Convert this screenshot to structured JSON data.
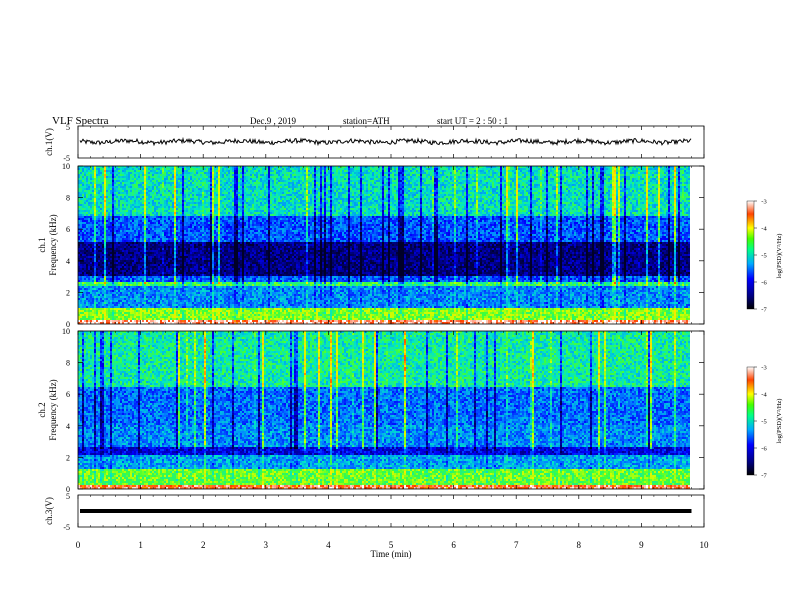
{
  "header": {
    "title": "VLF  Spectra",
    "date": "Dec.9  , 2019",
    "station": "station=ATH",
    "start_ut": "start  UT  =    2  : 50 : 1"
  },
  "chart_data": [
    {
      "type": "line",
      "ylabel": "ch.1(V)",
      "ylim": [
        -5,
        5
      ],
      "yticks": [
        "5",
        "-5"
      ],
      "description_level": 0.1
    },
    {
      "type": "heatmap",
      "ylabel_top": "ch.1",
      "ylabel": "Frequency  (kHz)",
      "ylim": [
        0,
        10
      ],
      "yticks": [
        "0",
        "2",
        "4",
        "6",
        "8",
        "10"
      ],
      "colorbar": {
        "label": "log(PSD)(V²/Hz)",
        "range": [
          -7,
          -3
        ],
        "ticks": [
          "-3",
          "-4",
          "-5",
          "-6",
          "-7"
        ]
      }
    },
    {
      "type": "heatmap",
      "ylabel_top": "ch.2",
      "ylabel": "Frequency  (kHz)",
      "ylim": [
        0,
        10
      ],
      "yticks": [
        "0",
        "2",
        "4",
        "6",
        "8",
        "10"
      ],
      "colorbar": {
        "label": "log(PSD)(V²/Hz)",
        "range": [
          -7,
          -3
        ],
        "ticks": [
          "-3",
          "-4",
          "-5",
          "-6",
          "-7"
        ]
      }
    },
    {
      "type": "line",
      "ylabel": "ch.3(V)",
      "ylim": [
        -5,
        5
      ],
      "yticks": [
        "5",
        "-5"
      ],
      "level": 0
    }
  ],
  "xaxis": {
    "label": "Time  (min)",
    "range": [
      0,
      10
    ],
    "ticks": [
      "0",
      "1",
      "2",
      "3",
      "4",
      "5",
      "6",
      "7",
      "8",
      "9",
      "10"
    ],
    "data_end": 9.8
  },
  "colors": {
    "trace": "#000000",
    "spectrogram": [
      "#000066",
      "#0000ff",
      "#00aaff",
      "#00ffcc",
      "#44ff44",
      "#ffff00",
      "#ff0000"
    ]
  }
}
